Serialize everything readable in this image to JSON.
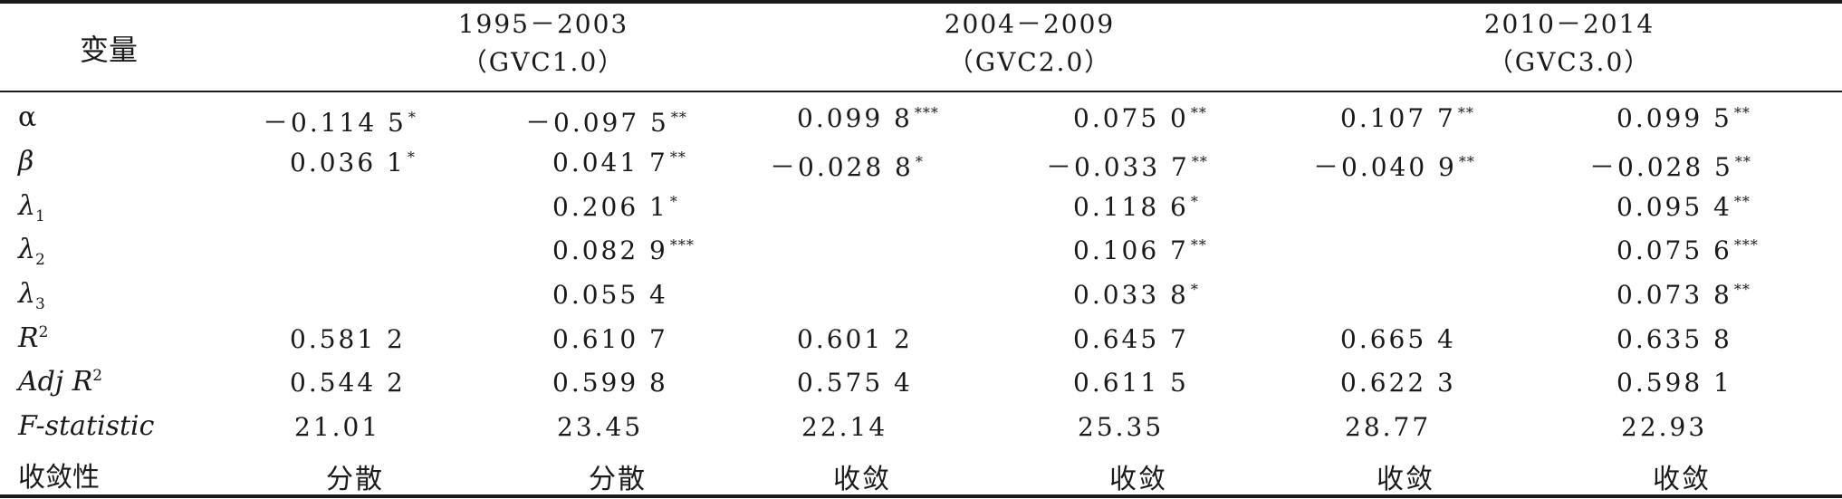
{
  "header": {
    "variable_label": "变量",
    "periods": [
      {
        "years": "1995－2003",
        "label": "（GVC1.0）"
      },
      {
        "years": "2004－2009",
        "label": "（GVC2.0）"
      },
      {
        "years": "2010－2014",
        "label": "（GVC3.0）"
      }
    ]
  },
  "rows": [
    {
      "label": "α",
      "cells": [
        {
          "v": "－0.114 5",
          "s": "*"
        },
        {
          "v": "－0.097 5",
          "s": "**"
        },
        {
          "v": "0.099 8",
          "s": "***"
        },
        {
          "v": "0.075 0",
          "s": "**"
        },
        {
          "v": "0.107 7",
          "s": "**"
        },
        {
          "v": "0.099 5",
          "s": "**"
        }
      ]
    },
    {
      "label": "β",
      "cells": [
        {
          "v": "0.036 1",
          "s": "*"
        },
        {
          "v": "0.041 7",
          "s": "**"
        },
        {
          "v": "－0.028 8",
          "s": "*"
        },
        {
          "v": "－0.033 7",
          "s": "**"
        },
        {
          "v": "－0.040 9",
          "s": "**"
        },
        {
          "v": "－0.028 5",
          "s": "**"
        }
      ]
    },
    {
      "label": "λ",
      "sub": "1",
      "cells": [
        {
          "v": "",
          "s": ""
        },
        {
          "v": "0.206 1",
          "s": "*"
        },
        {
          "v": "",
          "s": ""
        },
        {
          "v": "0.118 6",
          "s": "*"
        },
        {
          "v": "",
          "s": ""
        },
        {
          "v": "0.095 4",
          "s": "**"
        }
      ]
    },
    {
      "label": "λ",
      "sub": "2",
      "cells": [
        {
          "v": "",
          "s": ""
        },
        {
          "v": "0.082 9",
          "s": "***"
        },
        {
          "v": "",
          "s": ""
        },
        {
          "v": "0.106 7",
          "s": "**"
        },
        {
          "v": "",
          "s": ""
        },
        {
          "v": "0.075 6",
          "s": "***"
        }
      ]
    },
    {
      "label": "λ",
      "sub": "3",
      "cells": [
        {
          "v": "",
          "s": ""
        },
        {
          "v": "0.055 4",
          "s": ""
        },
        {
          "v": "",
          "s": ""
        },
        {
          "v": "0.033 8",
          "s": "*"
        },
        {
          "v": "",
          "s": ""
        },
        {
          "v": "0.073 8",
          "s": "**"
        }
      ]
    },
    {
      "label": "R",
      "sup": "2",
      "cells": [
        {
          "v": "0.581 2",
          "s": ""
        },
        {
          "v": "0.610 7",
          "s": ""
        },
        {
          "v": "0.601 2",
          "s": ""
        },
        {
          "v": "0.645 7",
          "s": ""
        },
        {
          "v": "0.665 4",
          "s": ""
        },
        {
          "v": "0.635 8",
          "s": ""
        }
      ]
    },
    {
      "label": "Adj R",
      "sup": "2",
      "cells": [
        {
          "v": "0.544 2",
          "s": ""
        },
        {
          "v": "0.599 8",
          "s": ""
        },
        {
          "v": "0.575 4",
          "s": ""
        },
        {
          "v": "0.611 5",
          "s": ""
        },
        {
          "v": "0.622 3",
          "s": ""
        },
        {
          "v": "0.598 1",
          "s": ""
        }
      ]
    },
    {
      "label": "F-statistic",
      "cells": [
        {
          "v": "21.01",
          "s": ""
        },
        {
          "v": "23.45",
          "s": ""
        },
        {
          "v": "22.14",
          "s": ""
        },
        {
          "v": "25.35",
          "s": ""
        },
        {
          "v": "28.77",
          "s": ""
        },
        {
          "v": "22.93",
          "s": ""
        }
      ]
    },
    {
      "label": "收敛性",
      "cells": [
        {
          "v": "分散",
          "s": ""
        },
        {
          "v": "分散",
          "s": ""
        },
        {
          "v": "收敛",
          "s": ""
        },
        {
          "v": "收敛",
          "s": ""
        },
        {
          "v": "收敛",
          "s": ""
        },
        {
          "v": "收敛",
          "s": ""
        }
      ]
    }
  ]
}
